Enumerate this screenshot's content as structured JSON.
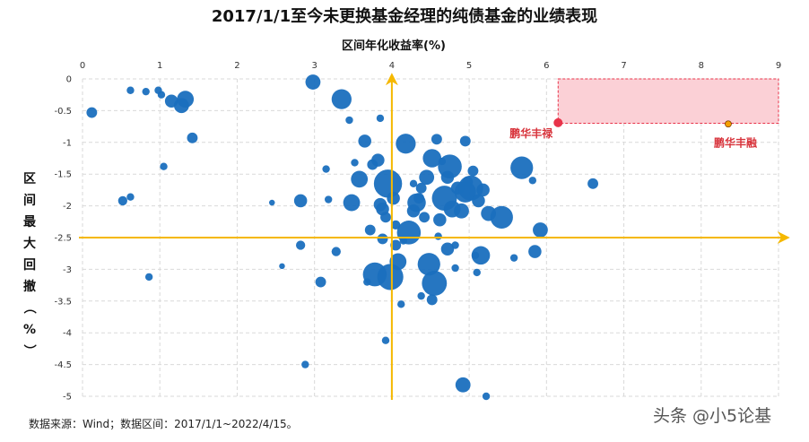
{
  "chart_data": {
    "type": "scatter",
    "title": "2017/1/1至今未更换基金经理的纯债基金的业绩表现",
    "xlabel": "区间年化收益率(%)",
    "ylabel": "区间最大回撤（%）",
    "xlim": [
      0,
      9
    ],
    "ylim": [
      -5,
      0
    ],
    "x_ticks": [
      "0",
      "1",
      "2",
      "3",
      "4",
      "5",
      "6",
      "7",
      "8",
      "9"
    ],
    "y_ticks": [
      "0",
      "-0.5",
      "-1",
      "-1.5",
      "-2",
      "-2.5",
      "-3",
      "-3.5",
      "-4",
      "-4.5",
      "-5"
    ],
    "grid": true,
    "x_axis_position": "top",
    "colors": {
      "points": "#1a6fbe",
      "reference_lines": "#f5b800",
      "highlight": "#e8334a",
      "zone_fill": "#fbd0d6"
    },
    "reference_lines": {
      "x": 4,
      "y": -2.5
    },
    "highlight_zone": {
      "x": [
        6.15,
        9
      ],
      "y": [
        -0.7,
        0
      ]
    },
    "highlights": [
      {
        "label": "鹏华丰禄",
        "x": 6.15,
        "y": -0.69,
        "color": "#e8334a"
      },
      {
        "label": "鹏华丰融",
        "x": 8.35,
        "y": -0.71,
        "color": "#f5a000"
      }
    ],
    "points": [
      [
        0.12,
        -0.53,
        2
      ],
      [
        0.62,
        -0.18,
        1
      ],
      [
        0.82,
        -0.2,
        1
      ],
      [
        0.98,
        -0.18,
        1
      ],
      [
        1.02,
        -0.25,
        1
      ],
      [
        1.15,
        -0.35,
        3
      ],
      [
        1.28,
        -0.42,
        4
      ],
      [
        1.33,
        -0.32,
        5
      ],
      [
        1.42,
        -0.93,
        2
      ],
      [
        1.05,
        -1.38,
        1
      ],
      [
        0.52,
        -1.92,
        1.5
      ],
      [
        0.62,
        -1.86,
        1
      ],
      [
        0.86,
        -3.12,
        1
      ],
      [
        2.45,
        -1.95,
        0.6
      ],
      [
        2.58,
        -2.95,
        0.6
      ],
      [
        2.88,
        -4.5,
        1
      ],
      [
        2.82,
        -2.62,
        1.5
      ],
      [
        2.98,
        -0.05,
        4
      ],
      [
        3.35,
        -0.32,
        7
      ],
      [
        3.45,
        -0.65,
        1
      ],
      [
        3.52,
        -1.32,
        1
      ],
      [
        3.58,
        -1.58,
        5
      ],
      [
        3.65,
        -0.98,
        3
      ],
      [
        3.75,
        -1.35,
        2
      ],
      [
        3.82,
        -1.28,
        3
      ],
      [
        3.85,
        -0.62,
        1
      ],
      [
        3.15,
        -1.42,
        1
      ],
      [
        3.18,
        -1.9,
        1
      ],
      [
        3.28,
        -2.72,
        1.5
      ],
      [
        3.08,
        -3.2,
        2
      ],
      [
        2.82,
        -1.92,
        3
      ],
      [
        3.48,
        -1.95,
        5
      ],
      [
        3.72,
        -2.38,
        2
      ],
      [
        3.85,
        -1.98,
        3
      ],
      [
        3.95,
        -1.65,
        14
      ],
      [
        3.88,
        -2.05,
        3
      ],
      [
        3.92,
        -2.18,
        2
      ],
      [
        3.88,
        -2.52,
        2
      ],
      [
        3.78,
        -3.08,
        10
      ],
      [
        3.98,
        -3.12,
        12
      ],
      [
        4.02,
        -1.88,
        3
      ],
      [
        4.08,
        -2.88,
        5
      ],
      [
        4.05,
        -2.62,
        2
      ],
      [
        4.15,
        -2.55,
        1
      ],
      [
        4.18,
        -1.02,
        7
      ],
      [
        4.22,
        -2.42,
        10
      ],
      [
        4.28,
        -2.08,
        3
      ],
      [
        4.32,
        -1.95,
        6
      ],
      [
        4.38,
        -1.72,
        2
      ],
      [
        4.45,
        -1.55,
        4
      ],
      [
        4.48,
        -2.92,
        9
      ],
      [
        4.52,
        -1.25,
        6
      ],
      [
        4.55,
        -3.22,
        11
      ],
      [
        4.58,
        -0.95,
        2
      ],
      [
        4.65,
        -1.3,
        1
      ],
      [
        4.68,
        -1.88,
        11
      ],
      [
        4.72,
        -1.55,
        3
      ],
      [
        4.75,
        -1.38,
        10
      ],
      [
        4.78,
        -2.05,
        5
      ],
      [
        4.82,
        -2.62,
        1
      ],
      [
        4.85,
        -1.72,
        3
      ],
      [
        4.9,
        -2.08,
        4
      ],
      [
        4.95,
        -1.78,
        8
      ],
      [
        4.98,
        -1.62,
        2
      ],
      [
        5.02,
        -1.72,
        11
      ],
      [
        5.08,
        -2.78,
        1
      ],
      [
        5.12,
        -1.92,
        3
      ],
      [
        5.15,
        -2.78,
        6
      ],
      [
        5.25,
        -2.12,
        4
      ],
      [
        5.42,
        -2.18,
        9
      ],
      [
        5.58,
        -2.82,
        1
      ],
      [
        5.68,
        -1.4,
        9
      ],
      [
        5.82,
        -1.6,
        1
      ],
      [
        5.85,
        -2.72,
        3
      ],
      [
        5.92,
        -2.38,
        4
      ],
      [
        6.6,
        -1.65,
        2
      ],
      [
        4.92,
        -4.82,
        4
      ],
      [
        5.22,
        -5.0,
        1
      ],
      [
        4.38,
        -3.42,
        1
      ],
      [
        4.52,
        -3.48,
        2
      ],
      [
        4.35,
        -1.88,
        2
      ],
      [
        4.42,
        -2.18,
        2
      ],
      [
        4.62,
        -2.22,
        3
      ],
      [
        5.05,
        -1.45,
        2
      ],
      [
        4.12,
        -3.55,
        1
      ],
      [
        4.95,
        -0.98,
        2
      ],
      [
        3.92,
        -4.12,
        1
      ],
      [
        4.82,
        -2.98,
        1
      ],
      [
        5.18,
        -1.75,
        3
      ],
      [
        4.05,
        -2.3,
        1.5
      ],
      [
        4.6,
        -2.48,
        1
      ],
      [
        4.28,
        -1.65,
        1
      ],
      [
        3.68,
        -3.2,
        1
      ],
      [
        5.1,
        -3.05,
        1
      ],
      [
        4.72,
        -2.68,
        3
      ]
    ],
    "source": "数据来源：Wind；数据区间：2017/1/1~2022/4/15。",
    "watermark": "头条 @小5论基"
  }
}
